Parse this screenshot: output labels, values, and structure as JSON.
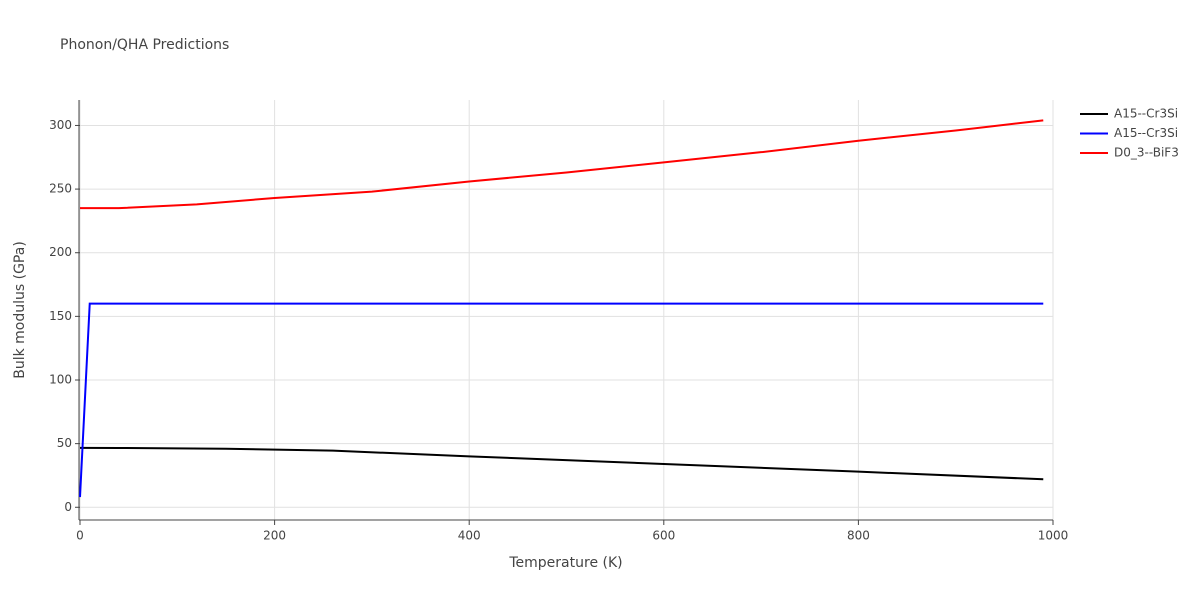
{
  "chart_data": {
    "type": "line",
    "title": "Phonon/QHA Predictions",
    "xlabel": "Temperature (K)",
    "ylabel": "Bulk modulus (GPa)",
    "xlim": [
      0,
      1000
    ],
    "ylim": [
      -10,
      320
    ],
    "xticks": [
      0,
      200,
      400,
      600,
      800,
      1000
    ],
    "yticks": [
      0,
      50,
      100,
      150,
      200,
      250,
      300
    ],
    "grid": true,
    "legend": "top-right",
    "series": [
      {
        "name": "A15--Cr3Si",
        "color": "#000000",
        "x": [
          0,
          40,
          150,
          260,
          400,
          450,
          600,
          800,
          990
        ],
        "values": [
          46.7,
          46.6,
          46,
          44.5,
          40,
          38.5,
          34,
          28,
          22
        ]
      },
      {
        "name": "A15--Cr3Si",
        "color": "#0000ff",
        "x": [
          0,
          10,
          990
        ],
        "values": [
          8,
          160,
          160
        ]
      },
      {
        "name": "D0_3--BiF3",
        "color": "#ff0000",
        "x": [
          0,
          40,
          120,
          200,
          300,
          400,
          500,
          600,
          700,
          800,
          900,
          990
        ],
        "values": [
          235,
          235,
          238,
          243,
          248,
          256,
          263,
          271,
          279,
          288,
          296,
          304
        ]
      }
    ]
  }
}
